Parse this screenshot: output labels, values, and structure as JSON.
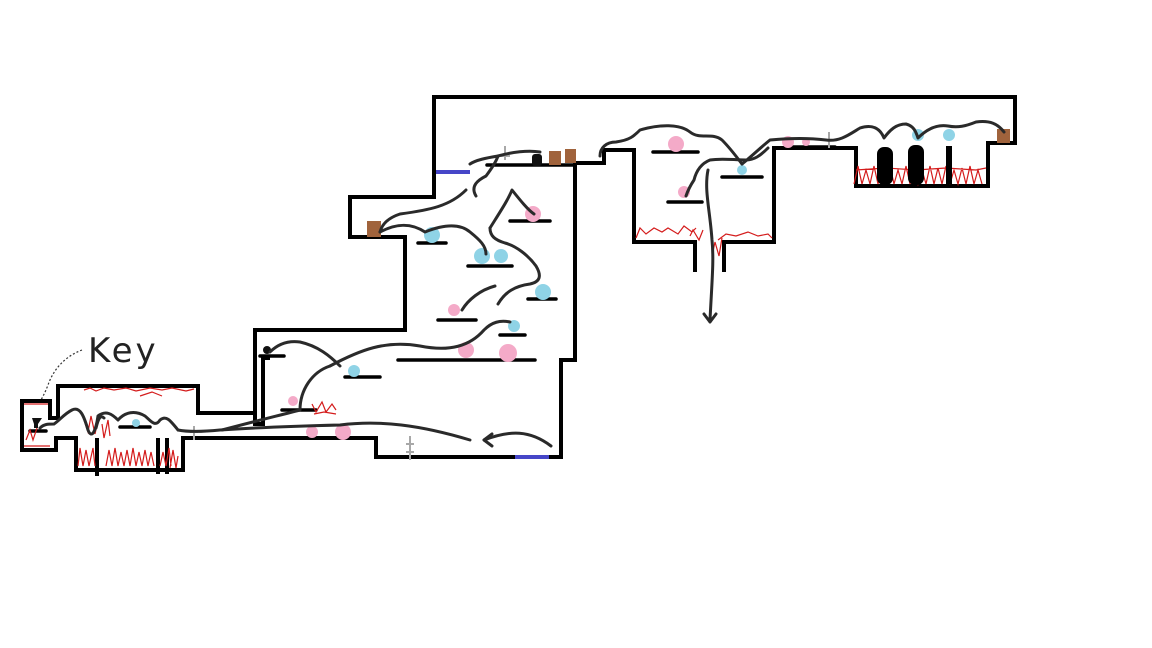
{
  "key_label": "Key",
  "colors": {
    "wall": "#000000",
    "route_path": "#2a2a2a",
    "hazard": "#d41c1c",
    "door": "#4646c8",
    "crate": "#a0633c",
    "orb_blue": "#8fd3e6",
    "orb_pink": "#f4aac8",
    "lever": "#a8a8a8"
  },
  "icons": [
    "key-icon",
    "lever-icon",
    "crate-icon",
    "door-icon",
    "orb-icon",
    "spike-hazard-icon",
    "exit-arrow-icon"
  ]
}
